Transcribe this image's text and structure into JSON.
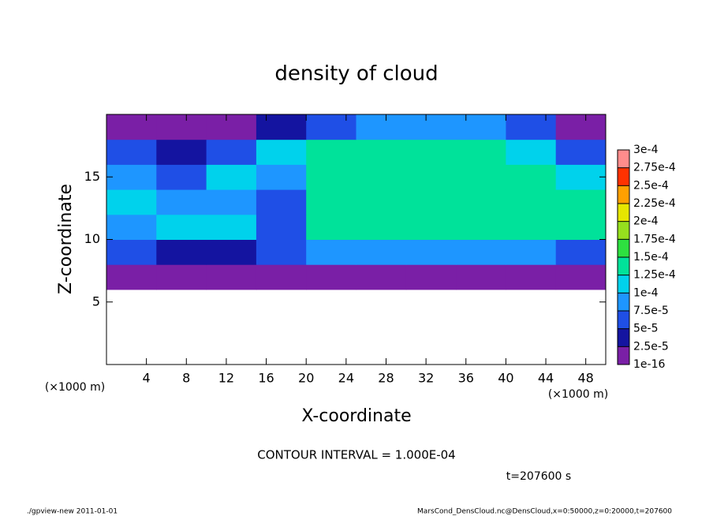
{
  "chart_data": {
    "type": "contour",
    "title": "density of cloud",
    "xlabel": "X-coordinate",
    "ylabel": "Z-coordinate",
    "x_unit": "(×1000 m)",
    "y_unit": "(×1000 m)",
    "annotation": "CONTOUR INTERVAL = 1.000E-04",
    "time_label": "t=207600 s",
    "footer_left": "./gpview-new  2011-01-01",
    "footer_right": "MarsCond_DensCloud.nc@DensCloud,x=0:50000,z=0:20000,t=207600",
    "xlim": [
      0,
      50
    ],
    "ylim": [
      0,
      20
    ],
    "xticks": [
      4,
      8,
      12,
      16,
      20,
      24,
      28,
      32,
      36,
      40,
      44,
      48
    ],
    "yticks": [
      5,
      10,
      15
    ],
    "x_bins": [
      0,
      5,
      10,
      15,
      20,
      25,
      30,
      35,
      40,
      45,
      50
    ],
    "z_bins": [
      0,
      2,
      4,
      6,
      8,
      10,
      12,
      14,
      16,
      18,
      20
    ],
    "values": [
      [
        null,
        null,
        null,
        null,
        null,
        null,
        null,
        null,
        null,
        null
      ],
      [
        null,
        null,
        null,
        null,
        null,
        null,
        null,
        null,
        null,
        null
      ],
      [
        null,
        null,
        null,
        null,
        null,
        null,
        null,
        null,
        null,
        null
      ],
      [
        1e-05,
        1e-05,
        1e-05,
        1e-05,
        2e-05,
        2e-05,
        2e-05,
        2e-05,
        2e-05,
        2e-05
      ],
      [
        5e-05,
        3e-05,
        3e-05,
        5e-05,
        8e-05,
        8e-05,
        8e-05,
        8e-05,
        8e-05,
        7e-05
      ],
      [
        8e-05,
        0.00011,
        0.0001,
        6e-05,
        0.00013,
        0.00014,
        0.00014,
        0.00014,
        0.00014,
        0.00013
      ],
      [
        0.0001,
        9e-05,
        9e-05,
        7e-05,
        0.00014,
        0.000145,
        0.000145,
        0.000145,
        0.00014,
        0.00013
      ],
      [
        8e-05,
        6e-05,
        0.0001,
        8e-05,
        0.000135,
        0.00014,
        0.00014,
        0.00014,
        0.000135,
        0.00012
      ],
      [
        5e-05,
        4e-05,
        6e-05,
        0.0001,
        0.00013,
        0.000135,
        0.000135,
        0.00013,
        0.00012,
        7e-05
      ],
      [
        1e-05,
        1e-05,
        2e-05,
        3e-05,
        5e-05,
        9e-05,
        9e-05,
        8e-05,
        5e-05,
        2e-05
      ]
    ],
    "levels": [
      {
        "value": 1e-16,
        "label": "1e-16"
      },
      {
        "value": 2.5e-05,
        "label": "2.5e-5"
      },
      {
        "value": 5e-05,
        "label": "5e-5"
      },
      {
        "value": 7.5e-05,
        "label": "7.5e-5"
      },
      {
        "value": 0.0001,
        "label": "1e-4"
      },
      {
        "value": 0.000125,
        "label": "1.25e-4"
      },
      {
        "value": 0.00015,
        "label": "1.5e-4"
      },
      {
        "value": 0.000175,
        "label": "1.75e-4"
      },
      {
        "value": 0.0002,
        "label": "2e-4"
      },
      {
        "value": 0.000225,
        "label": "2.25e-4"
      },
      {
        "value": 0.00025,
        "label": "2.5e-4"
      },
      {
        "value": 0.000275,
        "label": "2.75e-4"
      },
      {
        "value": 0.0003,
        "label": "3e-4"
      }
    ],
    "level_colors": [
      "#7a1fa6",
      "#1414a0",
      "#1f4fe6",
      "#1e96ff",
      "#00d2ec",
      "#00e29a",
      "#2ee040",
      "#96e01e",
      "#e6e600",
      "#ffa000",
      "#ff3200",
      "#ff8c8c"
    ]
  }
}
